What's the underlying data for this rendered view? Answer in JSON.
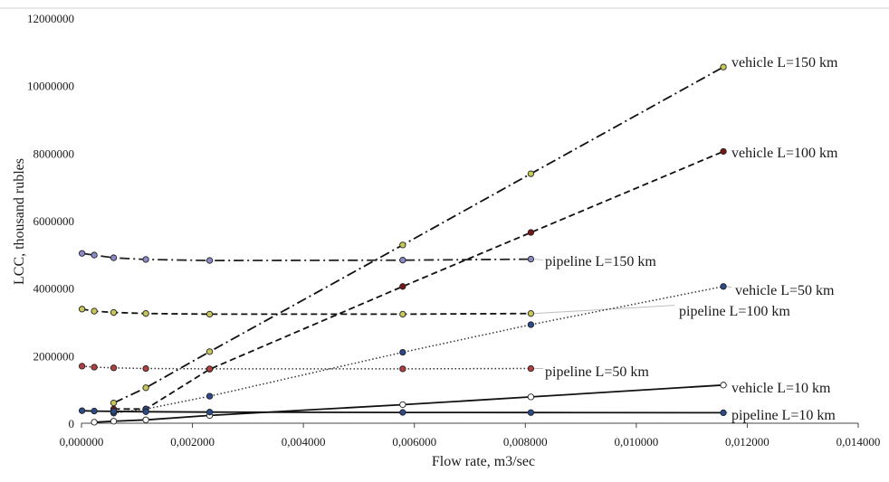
{
  "chart_data": {
    "type": "line",
    "title": "",
    "xlabel": "Flow rate, m3/sec",
    "ylabel": "LCC, thousand rubles",
    "xlim": [
      0,
      0.014
    ],
    "ylim": [
      0,
      12000000
    ],
    "x_ticks": [
      "0,000000",
      "0,002000",
      "0,004000",
      "0,006000",
      "0,008000",
      "0,010000",
      "0,012000",
      "0,014000"
    ],
    "y_ticks": [
      "0",
      "2000000",
      "4000000",
      "6000000",
      "8000000",
      "10000000",
      "12000000"
    ],
    "grid": false,
    "legend": "none (series labeled at line ends)",
    "series": [
      {
        "name": "vehicle L=150 km",
        "style": "dash-dot",
        "color": "#111111",
        "marker_color": "#c8c85a",
        "x": [
          0.00058,
          0.00116,
          0.00231,
          0.00579,
          0.0081,
          0.01157
        ],
        "y": [
          600000,
          1050000,
          2120000,
          5280000,
          7390000,
          10550000
        ]
      },
      {
        "name": "vehicle L=100 km",
        "style": "dashed",
        "color": "#111111",
        "marker_color": "#7a1515",
        "x": [
          0.00058,
          0.00116,
          0.00231,
          0.00579,
          0.0081,
          0.01157
        ],
        "y": [
          420000,
          420000,
          1600000,
          4050000,
          5650000,
          8050000
        ]
      },
      {
        "name": "vehicle L=50 km",
        "style": "dotted",
        "color": "#333333",
        "marker_color": "#2a4a8a",
        "x": [
          0.00058,
          0.00116,
          0.00231,
          0.00579,
          0.0081,
          0.01157
        ],
        "y": [
          300000,
          420000,
          800000,
          2100000,
          2920000,
          4050000
        ]
      },
      {
        "name": "vehicle L=10 km",
        "style": "solid",
        "color": "#111111",
        "marker_color": "#ffffff",
        "x": [
          0.00023,
          0.00058,
          0.00116,
          0.00231,
          0.00579,
          0.0081,
          0.01157
        ],
        "y": [
          30000,
          60000,
          100000,
          230000,
          550000,
          780000,
          1130000
        ]
      },
      {
        "name": "pipeline L=150 km",
        "style": "dash-dot",
        "color": "#222222",
        "marker_color": "#8a8ac8",
        "x": [
          1e-05,
          0.00023,
          0.00058,
          0.00116,
          0.00231,
          0.00579,
          0.0081
        ],
        "y": [
          5030000,
          4980000,
          4900000,
          4850000,
          4820000,
          4830000,
          4860000
        ]
      },
      {
        "name": "pipeline L=100 km",
        "style": "dashed",
        "color": "#111111",
        "marker_color": "#c8c85a",
        "x": [
          1e-05,
          0.00023,
          0.00058,
          0.00116,
          0.00231,
          0.00579,
          0.0081
        ],
        "y": [
          3380000,
          3320000,
          3280000,
          3250000,
          3230000,
          3230000,
          3250000
        ]
      },
      {
        "name": "pipeline L=50 km",
        "style": "dotted",
        "color": "#333333",
        "marker_color": "#b04040",
        "x": [
          1e-05,
          0.00023,
          0.00058,
          0.00116,
          0.00231,
          0.00579,
          0.0081
        ],
        "y": [
          1690000,
          1660000,
          1640000,
          1620000,
          1610000,
          1610000,
          1620000
        ]
      },
      {
        "name": "pipeline L=10 km",
        "style": "solid",
        "color": "#111111",
        "marker_color": "#2a4a8a",
        "x": [
          1e-05,
          0.00023,
          0.00058,
          0.00116,
          0.00231,
          0.00579,
          0.0081,
          0.01157
        ],
        "y": [
          370000,
          360000,
          350000,
          340000,
          330000,
          320000,
          315000,
          310000
        ]
      }
    ]
  }
}
